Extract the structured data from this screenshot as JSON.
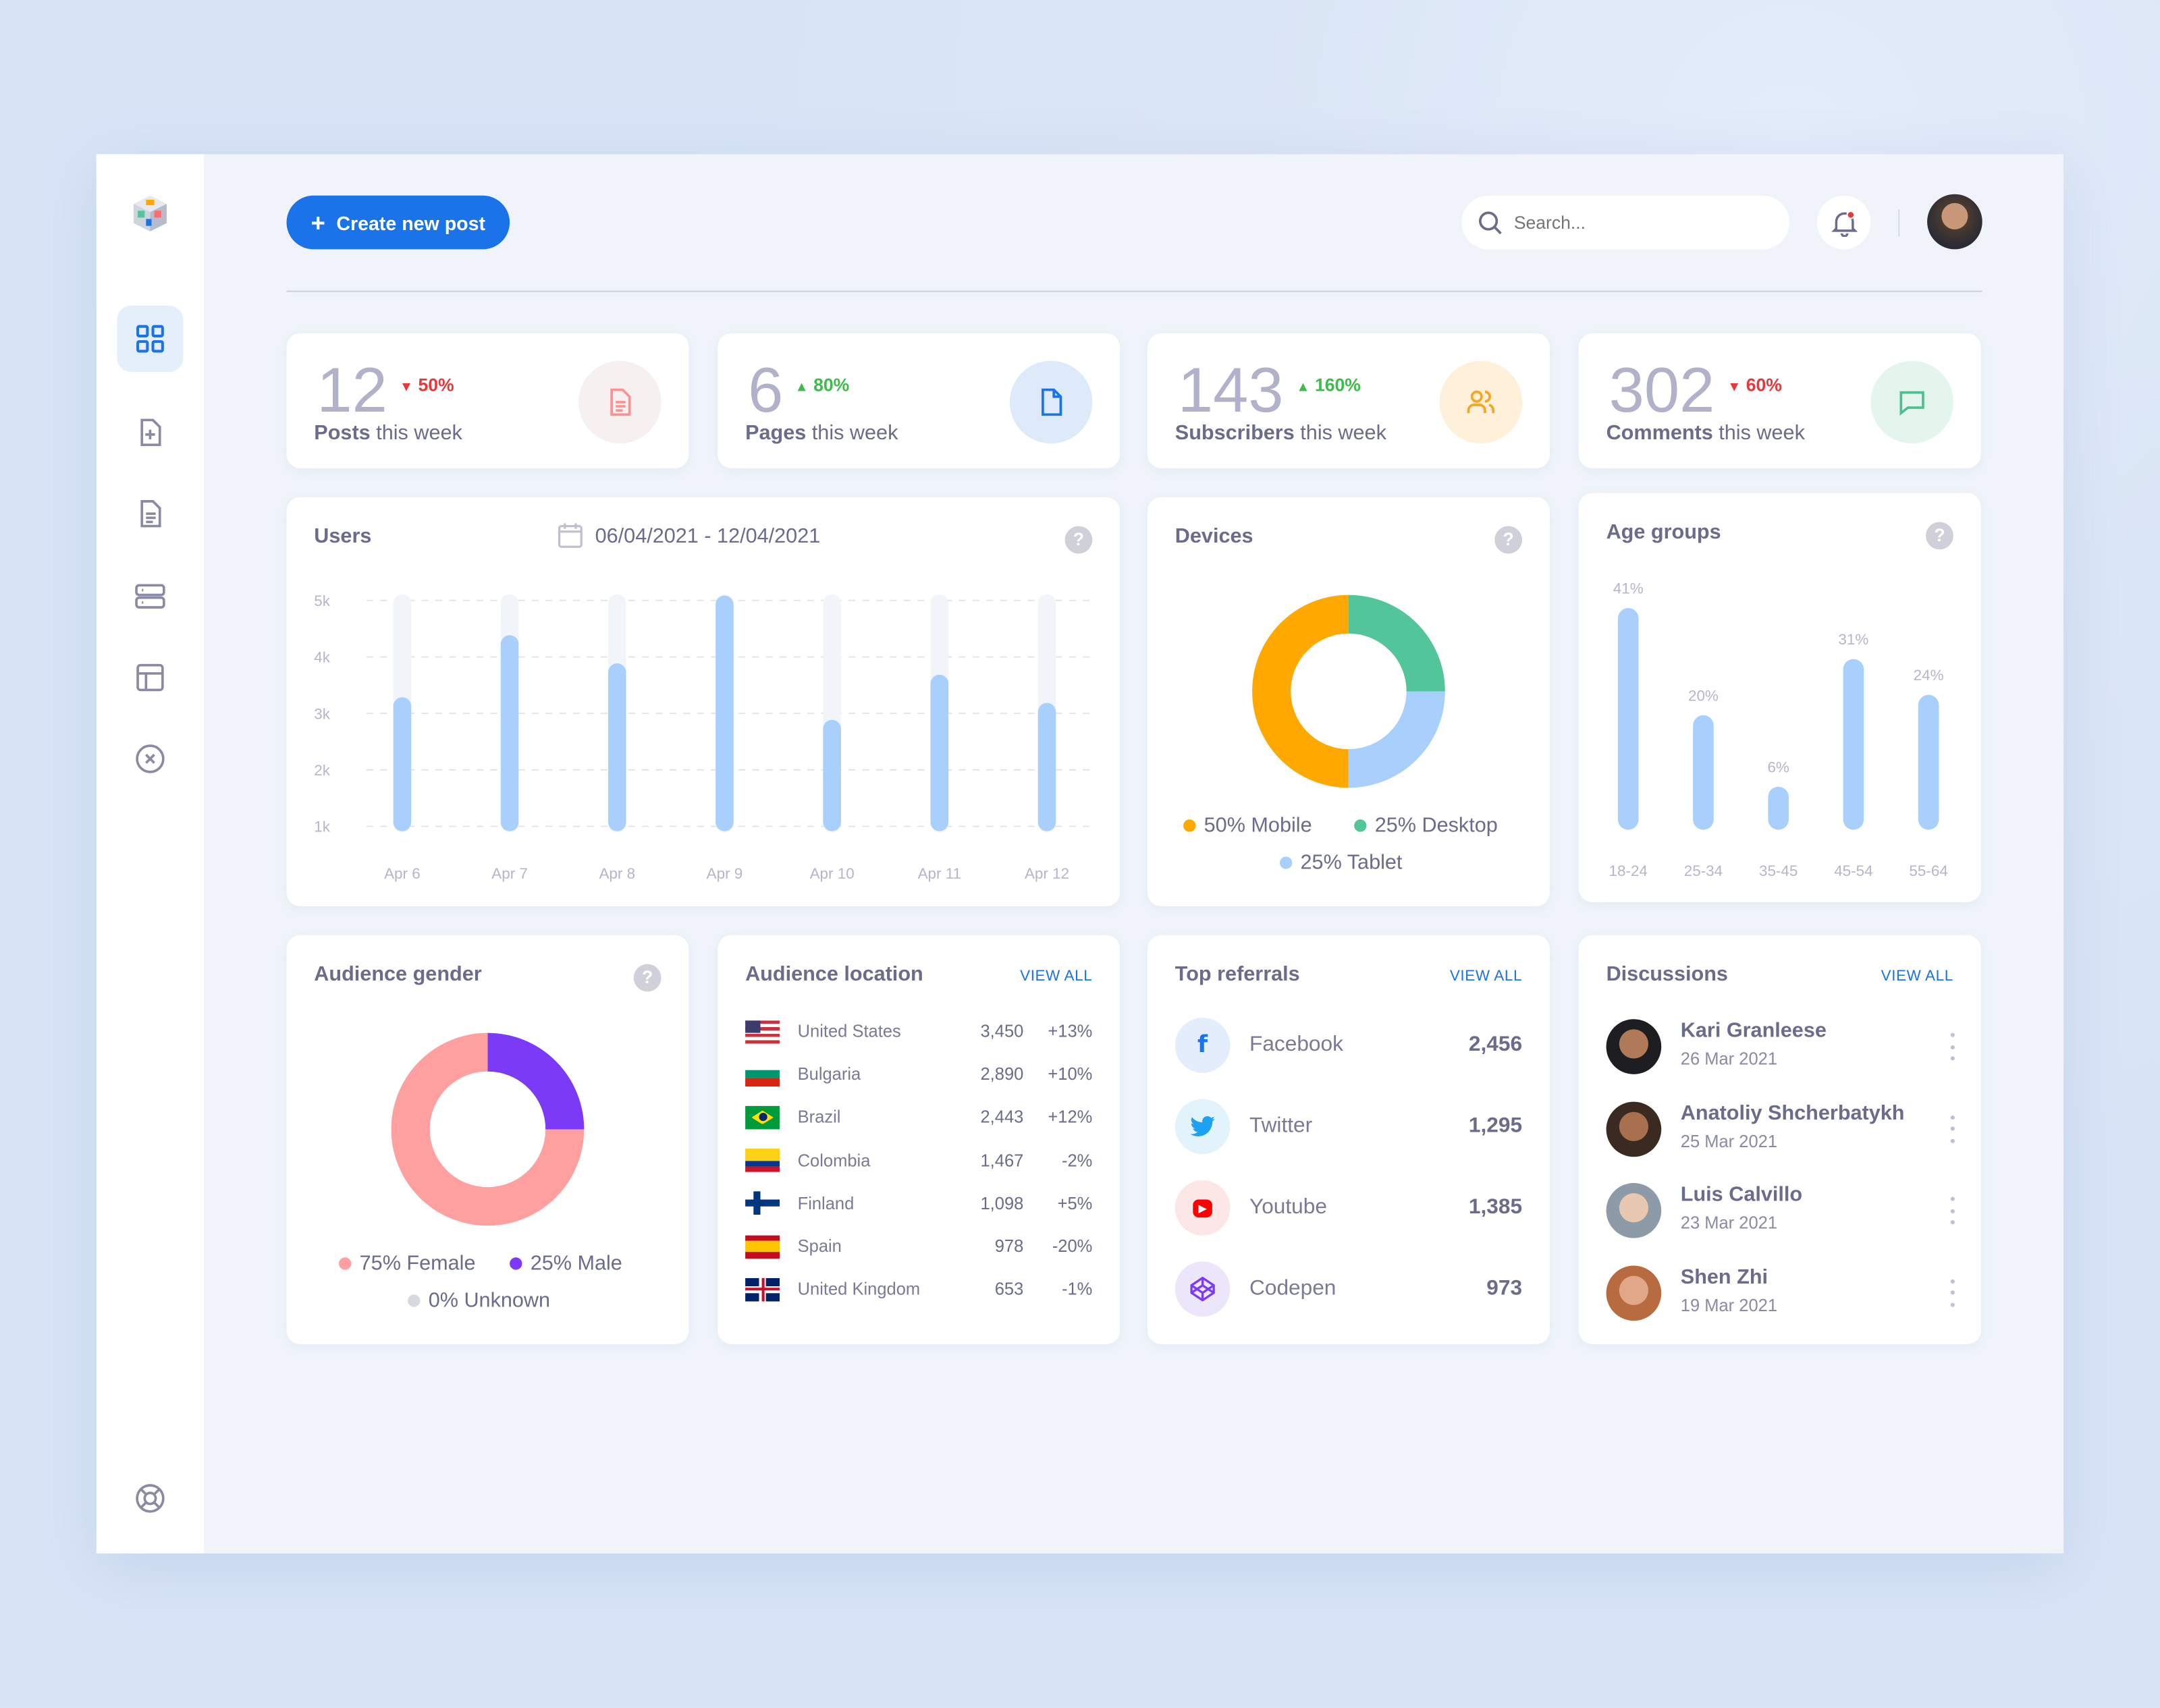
{
  "header": {
    "create_label": "Create new post",
    "search_placeholder": "Search..."
  },
  "sidebar": {
    "items": [
      "dashboard",
      "add-post",
      "pages",
      "storage",
      "layout",
      "close",
      "support"
    ]
  },
  "stats": [
    {
      "value": "12",
      "delta": "50%",
      "direction": "down",
      "bold": "Posts",
      "rest": " this week",
      "color": "#f7f0f0",
      "icon_color": "#ff8f8f"
    },
    {
      "value": "6",
      "delta": "80%",
      "direction": "up",
      "bold": "Pages",
      "rest": " this week",
      "color": "#dceaf9",
      "icon_color": "#1a73e8"
    },
    {
      "value": "143",
      "delta": "160%",
      "direction": "up",
      "bold": "Subscribers",
      "rest": " this week",
      "color": "#fff1d9",
      "icon_color": "#f5a623"
    },
    {
      "value": "302",
      "delta": "60%",
      "direction": "down",
      "bold": "Comments",
      "rest": " this week",
      "color": "#e4f5ee",
      "icon_color": "#4cbf8e"
    }
  ],
  "colors": {
    "up": "#3dbb4b",
    "down": "#e8363a",
    "accent": "#1a73e8",
    "bar": "#a9cffc",
    "track": "#f1f4f9"
  },
  "chart_data": [
    {
      "type": "bar",
      "title": "Users",
      "date_range": "06/04/2021 - 12/04/2021",
      "categories": [
        "Apr 6",
        "Apr 7",
        "Apr 8",
        "Apr 9",
        "Apr 10",
        "Apr 11",
        "Apr 12"
      ],
      "values": [
        3200,
        4300,
        3800,
        5000,
        2800,
        3600,
        3100
      ],
      "yticks": [
        "5k",
        "4k",
        "3k",
        "2k",
        "1k"
      ],
      "ylim": [
        1000,
        5000
      ]
    },
    {
      "type": "pie",
      "title": "Devices",
      "labels": [
        "50% Mobile",
        "25% Desktop",
        "25% Tablet"
      ],
      "values": [
        50,
        25,
        25
      ],
      "colors": [
        "#ffa800",
        "#52c59a",
        "#a9cffc"
      ]
    },
    {
      "type": "bar",
      "title": "Age groups",
      "categories": [
        "18-24",
        "25-34",
        "35-45",
        "45-54",
        "55-64"
      ],
      "values": [
        41,
        20,
        6,
        31,
        24
      ],
      "labels": [
        "41%",
        "20%",
        "6%",
        "31%",
        "24%"
      ],
      "ylim": [
        0,
        41
      ]
    },
    {
      "type": "pie",
      "title": "Audience gender",
      "labels": [
        "75% Female",
        "25% Male",
        "0% Unknown"
      ],
      "values": [
        75,
        25,
        0
      ],
      "colors": [
        "#ff9f9f",
        "#7b3af5",
        "#d8d8e0"
      ]
    }
  ],
  "location": {
    "title": "Audience location",
    "view_all": "VIEW ALL",
    "rows": [
      {
        "flag": "us",
        "country": "United States",
        "value": "3,450",
        "change": "+13%"
      },
      {
        "flag": "bg",
        "country": "Bulgaria",
        "value": "2,890",
        "change": "+10%"
      },
      {
        "flag": "br",
        "country": "Brazil",
        "value": "2,443",
        "change": "+12%"
      },
      {
        "flag": "co",
        "country": "Colombia",
        "value": "1,467",
        "change": "-2%"
      },
      {
        "flag": "fi",
        "country": "Finland",
        "value": "1,098",
        "change": "+5%"
      },
      {
        "flag": "es",
        "country": "Spain",
        "value": "978",
        "change": "-20%"
      },
      {
        "flag": "gb",
        "country": "United Kingdom",
        "value": "653",
        "change": "-1%"
      }
    ]
  },
  "referrals": {
    "title": "Top referrals",
    "view_all": "VIEW ALL",
    "rows": [
      {
        "name": "Facebook",
        "value": "2,456",
        "glyph": "f",
        "bg": "#e3edfb",
        "fg": "#1a73e8"
      },
      {
        "name": "Twitter",
        "value": "1,295",
        "glyph": "🐦",
        "bg": "#e2f3fc",
        "fg": "#1da1f2"
      },
      {
        "name": "Youtube",
        "value": "1,385",
        "glyph": "▶",
        "bg": "#fde6e6",
        "fg": "#ff0000"
      },
      {
        "name": "Codepen",
        "value": "973",
        "glyph": "⬡",
        "bg": "#ece6fb",
        "fg": "#7b3af5"
      }
    ]
  },
  "discussions": {
    "title": "Discussions",
    "view_all": "VIEW ALL",
    "rows": [
      {
        "name": "Kari Granleese",
        "date": "26 Mar 2021"
      },
      {
        "name": "Anatoliy Shcherbatykh",
        "date": "25 Mar 2021"
      },
      {
        "name": "Luis Calvillo",
        "date": "23 Mar 2021"
      },
      {
        "name": "Shen Zhi",
        "date": "19 Mar 2021"
      }
    ]
  }
}
